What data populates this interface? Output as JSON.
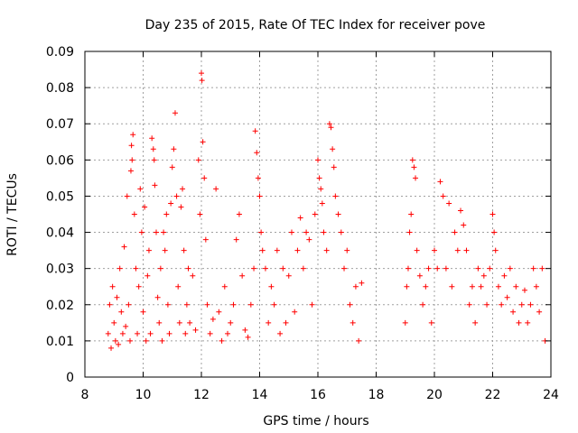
{
  "chart_data": {
    "type": "scatter",
    "title": "Day 235 of 2015, Rate Of TEC Index for receiver pove",
    "xlabel": "GPS time / hours",
    "ylabel": "ROTI / TECUs",
    "xlim": [
      8,
      24
    ],
    "ylim": [
      0,
      0.09
    ],
    "xticks": [
      8,
      10,
      12,
      14,
      16,
      18,
      20,
      22,
      24
    ],
    "xtick_labels": [
      "8",
      "10",
      "12",
      "14",
      "16",
      "18",
      "20",
      "22",
      "24"
    ],
    "yticks": [
      0,
      0.01,
      0.02,
      0.03,
      0.04,
      0.05,
      0.06,
      0.07,
      0.08,
      0.09
    ],
    "ytick_labels": [
      "0",
      "0.01",
      "0.02",
      "0.03",
      "0.04",
      "0.05",
      "0.06",
      "0.07",
      "0.08",
      "0.09"
    ],
    "grid": true,
    "marker": "+",
    "color": "#ff0000",
    "series": [
      {
        "name": "ROTI",
        "points": [
          [
            8.8,
            0.012
          ],
          [
            8.85,
            0.02
          ],
          [
            8.9,
            0.008
          ],
          [
            8.95,
            0.025
          ],
          [
            9.0,
            0.015
          ],
          [
            9.05,
            0.01
          ],
          [
            9.1,
            0.022
          ],
          [
            9.15,
            0.009
          ],
          [
            9.2,
            0.03
          ],
          [
            9.25,
            0.018
          ],
          [
            9.3,
            0.012
          ],
          [
            9.35,
            0.036
          ],
          [
            9.4,
            0.014
          ],
          [
            9.45,
            0.05
          ],
          [
            9.5,
            0.02
          ],
          [
            9.55,
            0.01
          ],
          [
            9.6,
            0.064
          ],
          [
            9.65,
            0.067
          ],
          [
            9.62,
            0.06
          ],
          [
            9.58,
            0.057
          ],
          [
            9.7,
            0.045
          ],
          [
            9.75,
            0.03
          ],
          [
            9.8,
            0.012
          ],
          [
            9.85,
            0.025
          ],
          [
            9.9,
            0.052
          ],
          [
            9.95,
            0.04
          ],
          [
            10.0,
            0.018
          ],
          [
            10.05,
            0.047
          ],
          [
            10.1,
            0.01
          ],
          [
            10.15,
            0.028
          ],
          [
            10.2,
            0.035
          ],
          [
            10.25,
            0.012
          ],
          [
            10.3,
            0.066
          ],
          [
            10.35,
            0.063
          ],
          [
            10.38,
            0.06
          ],
          [
            10.4,
            0.053
          ],
          [
            10.45,
            0.04
          ],
          [
            10.5,
            0.022
          ],
          [
            10.55,
            0.015
          ],
          [
            10.6,
            0.03
          ],
          [
            10.65,
            0.01
          ],
          [
            10.7,
            0.04
          ],
          [
            10.75,
            0.035
          ],
          [
            10.8,
            0.045
          ],
          [
            10.85,
            0.02
          ],
          [
            10.9,
            0.012
          ],
          [
            10.95,
            0.048
          ],
          [
            11.0,
            0.058
          ],
          [
            11.05,
            0.063
          ],
          [
            11.1,
            0.073
          ],
          [
            11.15,
            0.05
          ],
          [
            11.2,
            0.025
          ],
          [
            11.25,
            0.015
          ],
          [
            11.3,
            0.047
          ],
          [
            11.35,
            0.052
          ],
          [
            11.4,
            0.035
          ],
          [
            11.45,
            0.012
          ],
          [
            11.5,
            0.02
          ],
          [
            11.55,
            0.03
          ],
          [
            11.6,
            0.015
          ],
          [
            11.7,
            0.028
          ],
          [
            11.8,
            0.013
          ],
          [
            11.9,
            0.06
          ],
          [
            11.95,
            0.045
          ],
          [
            12.0,
            0.084
          ],
          [
            12.02,
            0.082
          ],
          [
            12.05,
            0.065
          ],
          [
            12.1,
            0.055
          ],
          [
            12.15,
            0.038
          ],
          [
            12.2,
            0.02
          ],
          [
            12.3,
            0.012
          ],
          [
            12.4,
            0.016
          ],
          [
            12.5,
            0.052
          ],
          [
            12.6,
            0.018
          ],
          [
            12.7,
            0.01
          ],
          [
            12.8,
            0.025
          ],
          [
            12.9,
            0.012
          ],
          [
            13.0,
            0.015
          ],
          [
            13.1,
            0.02
          ],
          [
            13.2,
            0.038
          ],
          [
            13.3,
            0.045
          ],
          [
            13.4,
            0.028
          ],
          [
            13.5,
            0.013
          ],
          [
            13.6,
            0.011
          ],
          [
            13.7,
            0.02
          ],
          [
            13.8,
            0.03
          ],
          [
            13.85,
            0.068
          ],
          [
            13.9,
            0.062
          ],
          [
            13.95,
            0.055
          ],
          [
            14.0,
            0.05
          ],
          [
            14.05,
            0.04
          ],
          [
            14.1,
            0.035
          ],
          [
            14.2,
            0.03
          ],
          [
            14.3,
            0.015
          ],
          [
            14.4,
            0.025
          ],
          [
            14.5,
            0.02
          ],
          [
            14.6,
            0.035
          ],
          [
            14.7,
            0.012
          ],
          [
            14.8,
            0.03
          ],
          [
            14.9,
            0.015
          ],
          [
            15.0,
            0.028
          ],
          [
            15.1,
            0.04
          ],
          [
            15.2,
            0.018
          ],
          [
            15.3,
            0.035
          ],
          [
            15.4,
            0.044
          ],
          [
            15.5,
            0.03
          ],
          [
            15.6,
            0.04
          ],
          [
            15.7,
            0.038
          ],
          [
            15.8,
            0.02
          ],
          [
            15.9,
            0.045
          ],
          [
            16.0,
            0.06
          ],
          [
            16.05,
            0.055
          ],
          [
            16.1,
            0.052
          ],
          [
            16.15,
            0.048
          ],
          [
            16.2,
            0.04
          ],
          [
            16.3,
            0.035
          ],
          [
            16.4,
            0.07
          ],
          [
            16.45,
            0.069
          ],
          [
            16.5,
            0.063
          ],
          [
            16.55,
            0.058
          ],
          [
            16.6,
            0.05
          ],
          [
            16.7,
            0.045
          ],
          [
            16.8,
            0.04
          ],
          [
            16.9,
            0.03
          ],
          [
            17.0,
            0.035
          ],
          [
            17.1,
            0.02
          ],
          [
            17.2,
            0.015
          ],
          [
            17.3,
            0.025
          ],
          [
            17.4,
            0.01
          ],
          [
            17.5,
            0.026
          ],
          [
            19.0,
            0.015
          ],
          [
            19.05,
            0.025
          ],
          [
            19.1,
            0.03
          ],
          [
            19.15,
            0.04
          ],
          [
            19.2,
            0.045
          ],
          [
            19.25,
            0.06
          ],
          [
            19.3,
            0.058
          ],
          [
            19.35,
            0.055
          ],
          [
            19.4,
            0.035
          ],
          [
            19.5,
            0.028
          ],
          [
            19.6,
            0.02
          ],
          [
            19.7,
            0.025
          ],
          [
            19.8,
            0.03
          ],
          [
            19.9,
            0.015
          ],
          [
            20.0,
            0.035
          ],
          [
            20.1,
            0.03
          ],
          [
            20.2,
            0.054
          ],
          [
            20.3,
            0.05
          ],
          [
            20.4,
            0.03
          ],
          [
            20.5,
            0.048
          ],
          [
            20.6,
            0.025
          ],
          [
            20.7,
            0.04
          ],
          [
            20.8,
            0.035
          ],
          [
            20.9,
            0.046
          ],
          [
            21.0,
            0.042
          ],
          [
            21.1,
            0.035
          ],
          [
            21.2,
            0.02
          ],
          [
            21.3,
            0.025
          ],
          [
            21.4,
            0.015
          ],
          [
            21.5,
            0.03
          ],
          [
            21.6,
            0.025
          ],
          [
            21.7,
            0.028
          ],
          [
            21.8,
            0.02
          ],
          [
            21.9,
            0.03
          ],
          [
            22.0,
            0.045
          ],
          [
            22.05,
            0.04
          ],
          [
            22.1,
            0.035
          ],
          [
            22.2,
            0.025
          ],
          [
            22.3,
            0.02
          ],
          [
            22.4,
            0.028
          ],
          [
            22.5,
            0.022
          ],
          [
            22.6,
            0.03
          ],
          [
            22.7,
            0.018
          ],
          [
            22.8,
            0.025
          ],
          [
            22.9,
            0.015
          ],
          [
            23.0,
            0.02
          ],
          [
            23.1,
            0.024
          ],
          [
            23.2,
            0.015
          ],
          [
            23.3,
            0.02
          ],
          [
            23.4,
            0.03
          ],
          [
            23.5,
            0.025
          ],
          [
            23.6,
            0.018
          ],
          [
            23.7,
            0.03
          ],
          [
            23.8,
            0.01
          ]
        ]
      }
    ]
  }
}
